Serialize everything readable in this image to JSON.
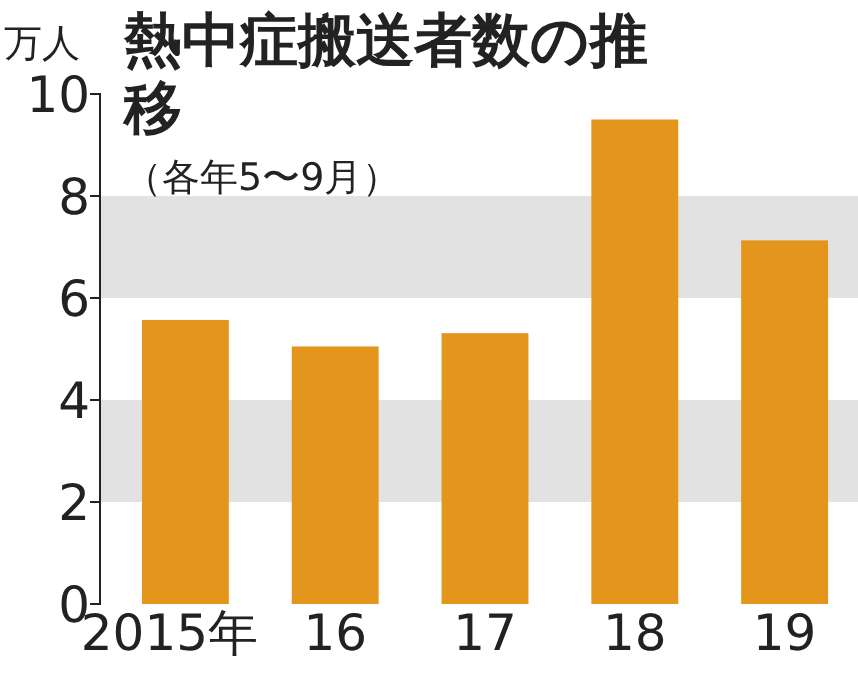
{
  "chart_data": {
    "type": "bar",
    "title": "熱中症搬送者数の推移",
    "subtitle": "（各年5〜9月）",
    "ylabel": "万人",
    "categories": [
      "2015年",
      "16",
      "17",
      "18",
      "19"
    ],
    "values": [
      5.57,
      5.05,
      5.31,
      9.5,
      7.13
    ],
    "color": "#e3951c",
    "ylim": [
      0,
      10
    ],
    "yticks": [
      0,
      2,
      4,
      6,
      8,
      10
    ],
    "bands": [
      {
        "axis": "y",
        "from": 2,
        "to": 4,
        "color": "#e2e2e2"
      },
      {
        "axis": "y",
        "from": 6,
        "to": 8,
        "color": "#e2e2e2"
      }
    ]
  }
}
